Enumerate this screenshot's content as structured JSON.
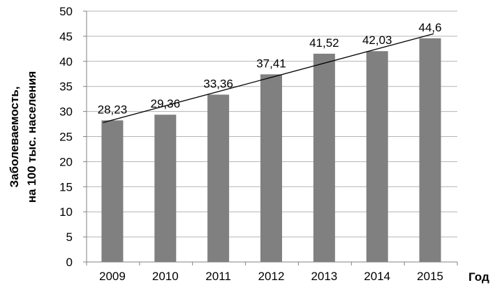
{
  "chart_data": {
    "type": "bar",
    "categories": [
      "2009",
      "2010",
      "2011",
      "2012",
      "2013",
      "2014",
      "2015"
    ],
    "values": [
      28.23,
      29.36,
      33.36,
      37.41,
      41.52,
      42.03,
      44.6
    ],
    "data_labels": [
      "28,23",
      "29,36",
      "33,36",
      "37,41",
      "41,52",
      "42,03",
      "44,6"
    ],
    "ylim": [
      0,
      50
    ],
    "yticks": [
      "0",
      "5",
      "10",
      "15",
      "20",
      "25",
      "30",
      "35",
      "40",
      "45",
      "50"
    ],
    "ytick_values": [
      0,
      5,
      10,
      15,
      20,
      25,
      30,
      35,
      40,
      45,
      50
    ],
    "ylabel_line1": "Заболеваемость,",
    "ylabel_line2": "на 100 тыс. населения",
    "xlabel": "Год",
    "grid": true,
    "trendline": {
      "type": "linear",
      "shown": true
    },
    "colors": {
      "bar": "#808080",
      "grid": "#b3b3b3",
      "trend": "#000000"
    }
  }
}
